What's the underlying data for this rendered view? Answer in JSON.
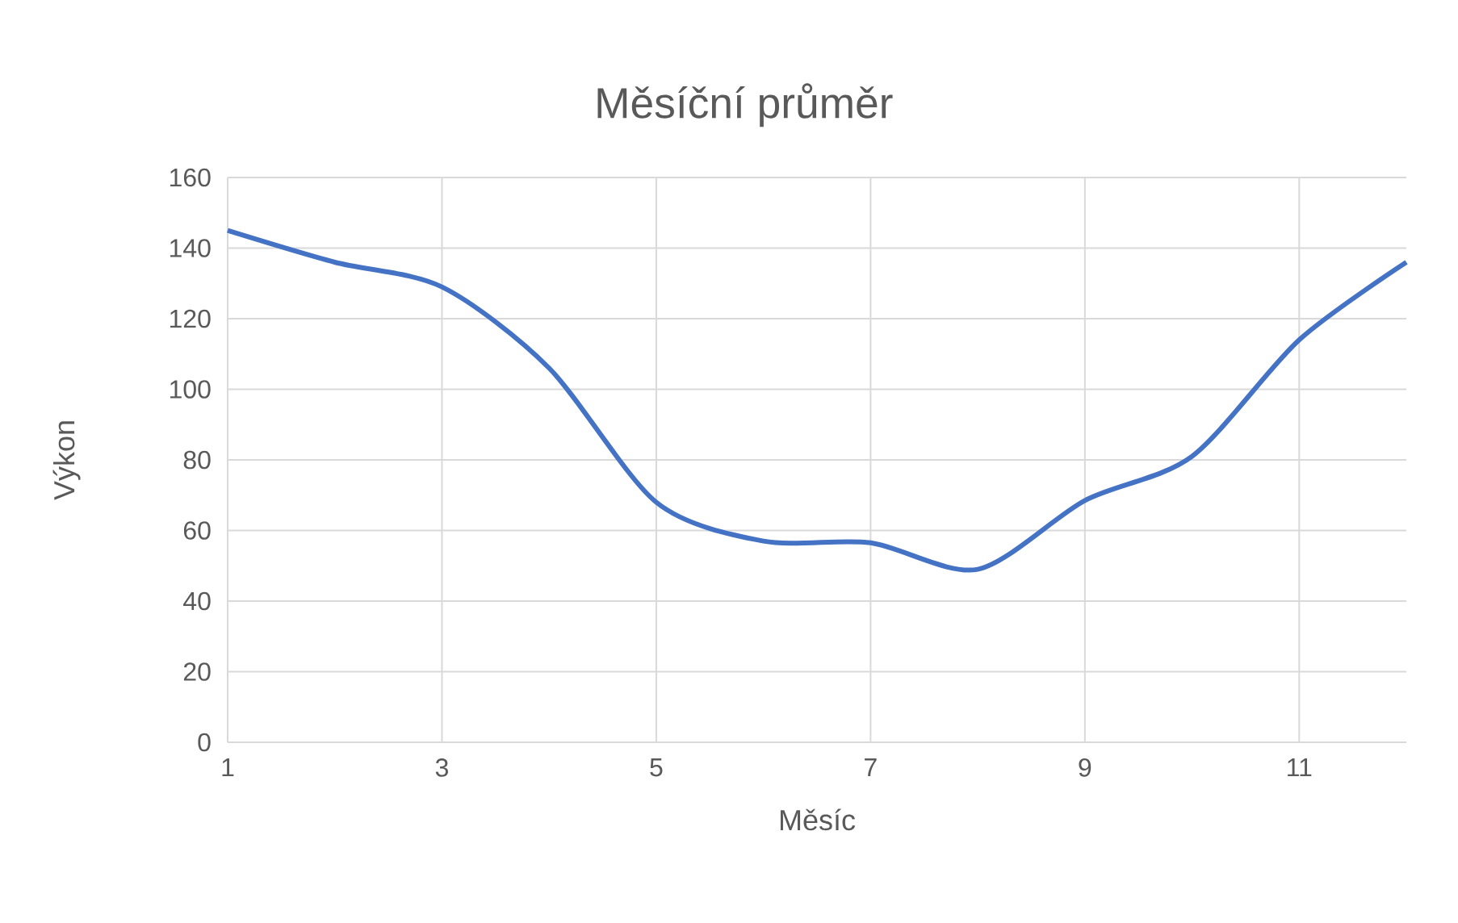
{
  "chart_data": {
    "type": "line",
    "title": "Měsíční průměr",
    "xlabel": "Měsíc",
    "ylabel": "Výkon",
    "x": [
      1,
      2,
      3,
      4,
      5,
      6,
      7,
      8,
      9,
      10,
      11,
      12
    ],
    "series": [
      {
        "color": "#4472c4",
        "values": [
          145,
          136,
          129,
          106,
          68,
          57,
          56.5,
          49,
          68.5,
          81,
          114,
          136
        ]
      }
    ],
    "xlim": [
      1,
      12
    ],
    "xticks": [
      1,
      3,
      5,
      7,
      9,
      11
    ],
    "ylim": [
      0,
      160
    ],
    "yticks": [
      0,
      20,
      40,
      60,
      80,
      100,
      120,
      140,
      160
    ],
    "grid": true,
    "marker": "none",
    "line_style": "solid"
  }
}
